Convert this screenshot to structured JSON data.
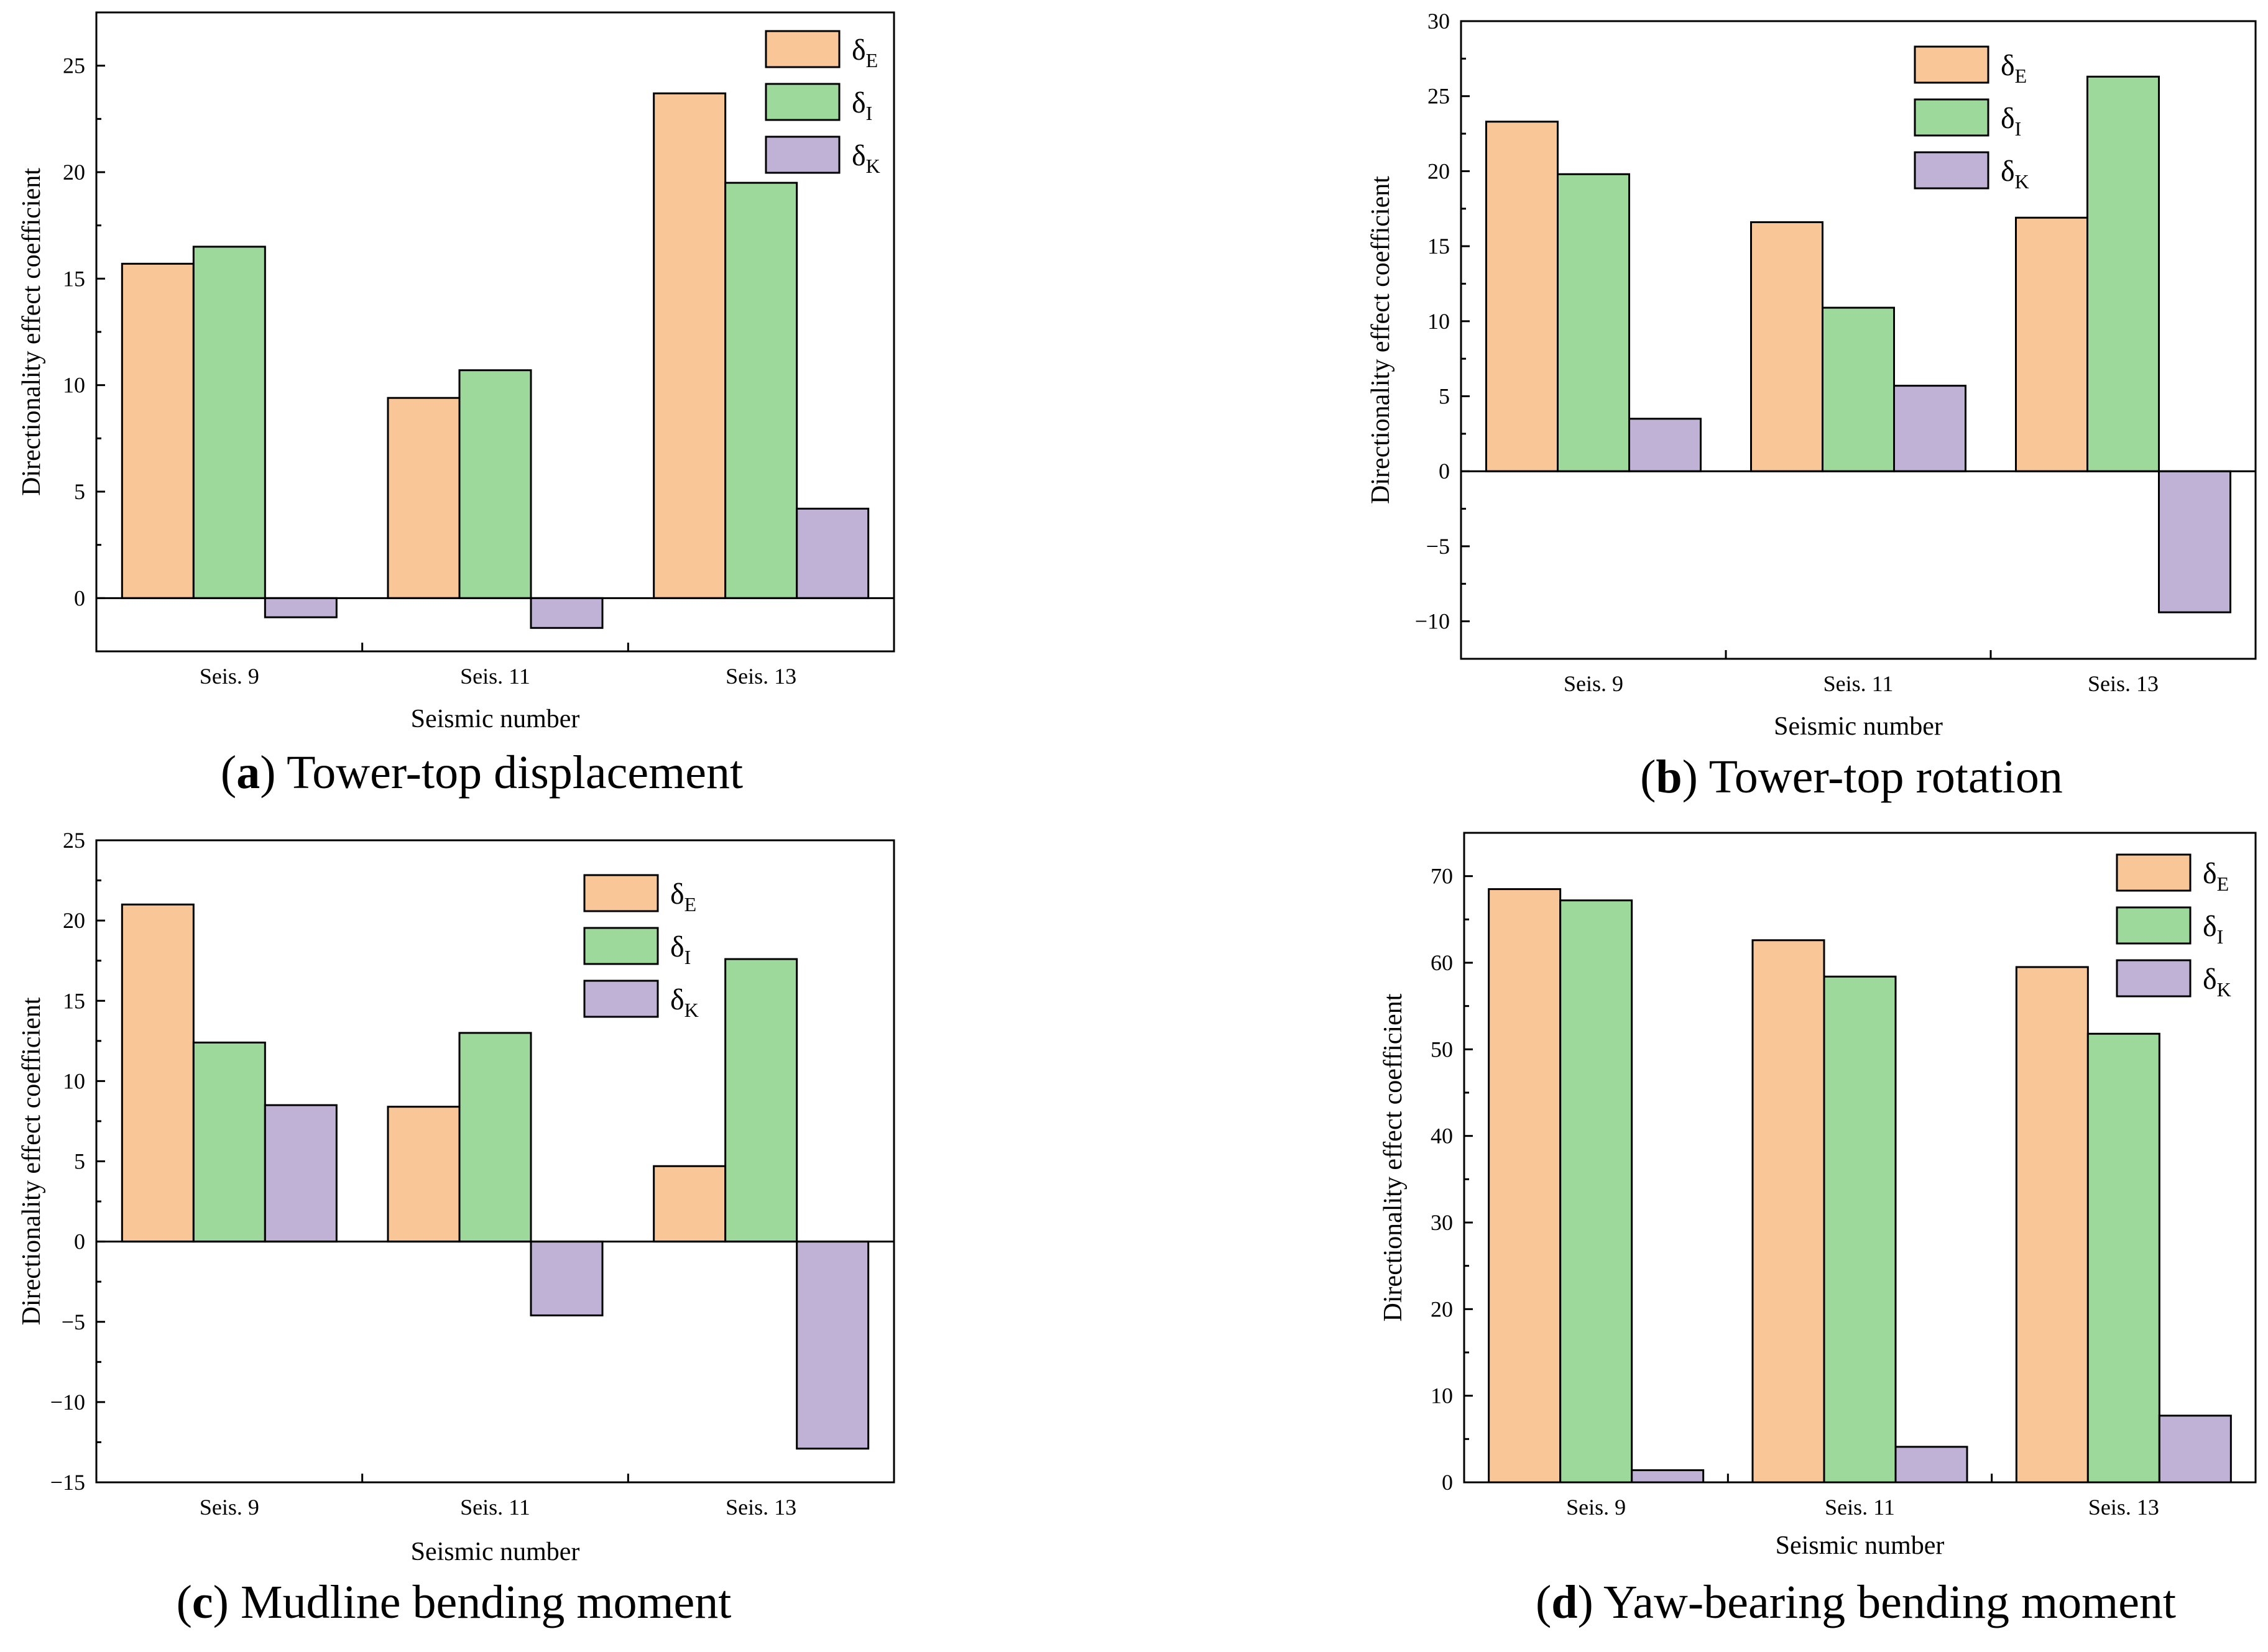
{
  "colors": {
    "E": "#f9c797",
    "I": "#9ed99c",
    "K": "#c0b2d7"
  },
  "chart_data": [
    {
      "id": "a",
      "type": "bar",
      "caption_letter": "a",
      "caption_text": " Tower-top displacement",
      "categories": [
        "Seis. 9",
        "Seis. 11",
        "Seis. 13"
      ],
      "series": [
        {
          "key": "E",
          "name": "δ",
          "sub": "E",
          "values": [
            15.7,
            9.4,
            23.7
          ]
        },
        {
          "key": "I",
          "name": "δ",
          "sub": "I",
          "values": [
            16.5,
            10.7,
            19.5
          ]
        },
        {
          "key": "K",
          "name": "δ",
          "sub": "K",
          "values": [
            -0.9,
            -1.4,
            4.2
          ]
        }
      ],
      "xlabel": "Seismic number",
      "ylabel": "Directionality effect coefficient",
      "ylim": [
        -2.5,
        27.5
      ],
      "yticks": [
        0,
        5,
        10,
        15,
        20,
        25
      ],
      "ytick_labels": [
        "0",
        "5",
        "10",
        "15",
        "20",
        "25"
      ],
      "legend_position": "top-right"
    },
    {
      "id": "b",
      "type": "bar",
      "caption_letter": "b",
      "caption_text": " Tower-top rotation",
      "categories": [
        "Seis. 9",
        "Seis. 11",
        "Seis. 13"
      ],
      "series": [
        {
          "key": "E",
          "name": "δ",
          "sub": "E",
          "values": [
            23.3,
            16.6,
            16.9
          ]
        },
        {
          "key": "I",
          "name": "δ",
          "sub": "I",
          "values": [
            19.8,
            10.9,
            26.3
          ]
        },
        {
          "key": "K",
          "name": "δ",
          "sub": "K",
          "values": [
            3.5,
            5.7,
            -9.4
          ]
        }
      ],
      "xlabel": "Seismic number",
      "ylabel": "Directionality effect coefficient",
      "ylim": [
        -12.5,
        30
      ],
      "yticks": [
        -10,
        -5,
        0,
        5,
        10,
        15,
        20,
        25,
        30
      ],
      "ytick_labels": [
        "−10",
        "−5",
        "0",
        "5",
        "10",
        "15",
        "20",
        "25",
        "30"
      ],
      "legend_position": "top-right"
    },
    {
      "id": "c",
      "type": "bar",
      "caption_letter": "c",
      "caption_text": " Mudline bending moment",
      "categories": [
        "Seis. 9",
        "Seis. 11",
        "Seis. 13"
      ],
      "series": [
        {
          "key": "E",
          "name": "δ",
          "sub": "E",
          "values": [
            21.0,
            8.4,
            4.7
          ]
        },
        {
          "key": "I",
          "name": "δ",
          "sub": "I",
          "values": [
            12.4,
            13.0,
            17.6
          ]
        },
        {
          "key": "K",
          "name": "δ",
          "sub": "K",
          "values": [
            8.5,
            -4.6,
            -12.9
          ]
        }
      ],
      "xlabel": "Seismic number",
      "ylabel": "Directionality effect coefficient",
      "ylim": [
        -15,
        25
      ],
      "yticks": [
        -15,
        -10,
        -5,
        0,
        5,
        10,
        15,
        20,
        25
      ],
      "ytick_labels": [
        "−15",
        "−10",
        "−5",
        "0",
        "5",
        "10",
        "15",
        "20",
        "25"
      ],
      "legend_position": "top-right"
    },
    {
      "id": "d",
      "type": "bar",
      "caption_letter": "d",
      "caption_text": " Yaw-bearing bending moment",
      "categories": [
        "Seis. 9",
        "Seis. 11",
        "Seis. 13"
      ],
      "series": [
        {
          "key": "E",
          "name": "δ",
          "sub": "E",
          "values": [
            68.5,
            62.6,
            59.5
          ]
        },
        {
          "key": "I",
          "name": "δ",
          "sub": "I",
          "values": [
            67.2,
            58.4,
            51.8
          ]
        },
        {
          "key": "K",
          "name": "δ",
          "sub": "K",
          "values": [
            1.4,
            4.1,
            7.7
          ]
        }
      ],
      "xlabel": "Seismic number",
      "ylabel": "Directionality effect coefficient",
      "ylim": [
        0,
        75
      ],
      "yticks": [
        0,
        10,
        20,
        30,
        40,
        50,
        60,
        70
      ],
      "ytick_labels": [
        "0",
        "10",
        "20",
        "30",
        "40",
        "50",
        "60",
        "70"
      ],
      "legend_position": "top-right"
    }
  ]
}
